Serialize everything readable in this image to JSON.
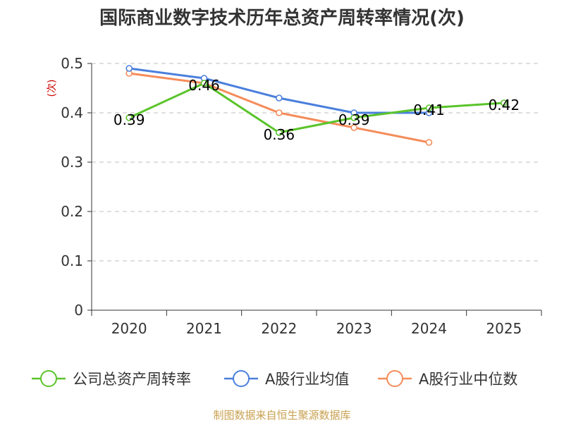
{
  "chart_data": {
    "type": "line",
    "title": "国际商业数字技术历年总资产周转率情况(次)",
    "ylabel": "(次)",
    "xlabel": "",
    "categories": [
      "2020",
      "2021",
      "2022",
      "2023",
      "2024",
      "2025"
    ],
    "ylim": [
      0,
      0.5
    ],
    "yticks": [
      "0",
      "0.1",
      "0.2",
      "0.3",
      "0.4",
      "0.5"
    ],
    "grid": true,
    "series": [
      {
        "name": "公司总资产周转率",
        "color": "#5ac42a",
        "values": [
          0.39,
          0.46,
          0.36,
          0.39,
          0.41,
          0.42
        ],
        "labels": [
          "0.39",
          "0.46",
          "0.36",
          "0.39",
          "0.41",
          "0.42"
        ]
      },
      {
        "name": "A股行业均值",
        "color": "#4a7fdc",
        "values": [
          0.49,
          0.47,
          0.43,
          0.4,
          0.4,
          null
        ]
      },
      {
        "name": "A股行业中位数",
        "color": "#f58c5a",
        "values": [
          0.48,
          0.46,
          0.4,
          0.37,
          0.34,
          null
        ]
      }
    ],
    "legend_position": "bottom",
    "source": "制图数据来自恒生聚源数据库"
  }
}
